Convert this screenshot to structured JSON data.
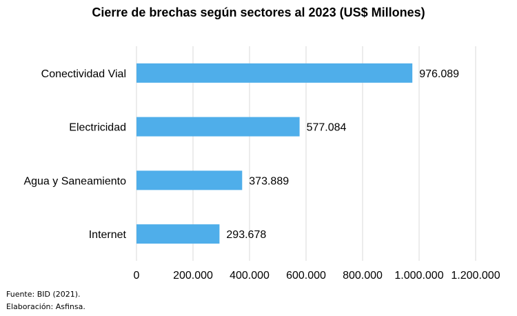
{
  "chart_data": {
    "type": "bar",
    "orientation": "horizontal",
    "title": "Cierre de brechas según sectores al 2023 (US$ Millones)",
    "categories": [
      "Conectividad Vial",
      "Electricidad",
      "Agua y Saneamiento",
      "Internet"
    ],
    "values": [
      976.089,
      577.084,
      373.889,
      293.678
    ],
    "value_labels": [
      "976.089",
      "577.084",
      "373.889",
      "293.678"
    ],
    "xlim": [
      0,
      1200
    ],
    "xticks": [
      0,
      200,
      400,
      600,
      800,
      1000,
      1200
    ],
    "xtick_labels": [
      "0",
      "200.000",
      "400.000",
      "600.000",
      "800.000",
      "1.000.000",
      "1.200.000"
    ],
    "grid": true,
    "bar_color": "#4FAEEA"
  },
  "footer": {
    "source": "Fuente: BID (2021).",
    "author": "Elaboración: Asfinsa."
  }
}
